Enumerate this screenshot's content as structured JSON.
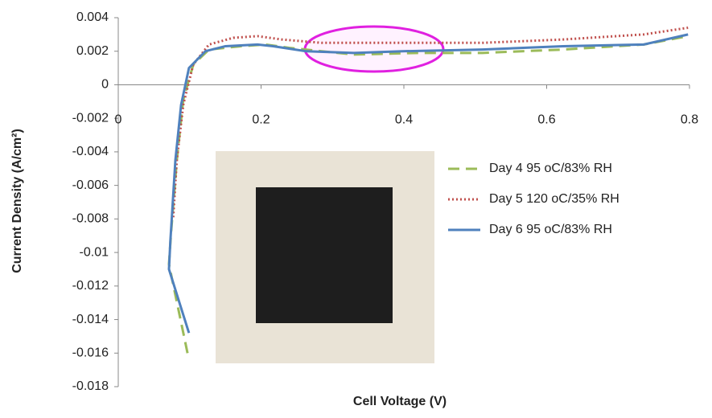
{
  "chart_data": {
    "type": "line",
    "xlabel": "Cell Voltage (V)",
    "ylabel": "Current Density (A/cm²)",
    "xlim": [
      0,
      0.8
    ],
    "xticks": [
      0,
      0.2,
      0.4,
      0.6,
      0.8
    ],
    "ylim": [
      -0.018,
      0.004
    ],
    "yticks": [
      0.004,
      0.002,
      0,
      -0.002,
      -0.004,
      -0.006,
      -0.008,
      -0.01,
      -0.012,
      -0.014,
      -0.016,
      -0.018
    ],
    "legend": "right",
    "series": [
      {
        "name": "Day 4 95 oC/83% RH",
        "color": "#9bbb59",
        "dash": "14 8",
        "x": [
          0.097,
          0.071,
          0.074,
          0.082,
          0.091,
          0.105,
          0.127,
          0.172,
          0.206,
          0.24,
          0.33,
          0.42,
          0.51,
          0.623,
          0.736,
          0.798
        ],
        "values": [
          -0.016,
          -0.0107,
          -0.0088,
          -0.0045,
          -0.0009,
          0.0012,
          0.0021,
          0.0023,
          0.0024,
          0.0022,
          0.0018,
          0.0019,
          0.0019,
          0.0021,
          0.0024,
          0.0029
        ]
      },
      {
        "name": "Day 5 120 oC/35% RH",
        "color": "#c0504d",
        "dash": "2 3",
        "x": [
          0.077,
          0.082,
          0.091,
          0.105,
          0.127,
          0.161,
          0.195,
          0.229,
          0.285,
          0.398,
          0.51,
          0.623,
          0.736,
          0.798
        ],
        "values": [
          -0.0079,
          -0.0045,
          -0.0012,
          0.0012,
          0.0024,
          0.0028,
          0.0029,
          0.0027,
          0.0025,
          0.0025,
          0.0025,
          0.0027,
          0.003,
          0.0034
        ]
      },
      {
        "name": "Day 6 95 oC/83% RH",
        "color": "#4f81bd",
        "dash": "none",
        "x": [
          0.099,
          0.071,
          0.073,
          0.08,
          0.088,
          0.099,
          0.122,
          0.15,
          0.195,
          0.217,
          0.263,
          0.33,
          0.398,
          0.51,
          0.623,
          0.736,
          0.798
        ],
        "values": [
          -0.0148,
          -0.011,
          -0.0093,
          -0.0045,
          -0.0012,
          0.001,
          0.002,
          0.0023,
          0.0024,
          0.0023,
          0.002,
          0.0019,
          0.002,
          0.0021,
          0.0023,
          0.0024,
          0.003
        ]
      }
    ]
  }
}
